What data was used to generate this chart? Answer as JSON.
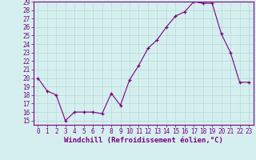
{
  "x": [
    0,
    1,
    2,
    3,
    4,
    5,
    6,
    7,
    8,
    9,
    10,
    11,
    12,
    13,
    14,
    15,
    16,
    17,
    18,
    19,
    20,
    21,
    22,
    23
  ],
  "y": [
    20,
    18.5,
    18,
    15,
    16,
    16,
    16,
    15.8,
    18.2,
    16.8,
    19.8,
    21.5,
    23.5,
    24.5,
    26,
    27.3,
    27.8,
    29,
    28.8,
    28.8,
    25.2,
    23,
    19.5,
    19.5
  ],
  "line_color": "#7b0080",
  "marker": "+",
  "background_color": "#d5efef",
  "grid_color": "#b8dada",
  "xlabel": "Windchill (Refroidissement éolien,°C)",
  "xlim": [
    -0.5,
    23.5
  ],
  "ylim": [
    14.5,
    29.0
  ],
  "yticks": [
    15,
    16,
    17,
    18,
    19,
    20,
    21,
    22,
    23,
    24,
    25,
    26,
    27,
    28,
    29
  ],
  "xticks": [
    0,
    1,
    2,
    3,
    4,
    5,
    6,
    7,
    8,
    9,
    10,
    11,
    12,
    13,
    14,
    15,
    16,
    17,
    18,
    19,
    20,
    21,
    22,
    23
  ],
  "tick_label_size": 5.5,
  "xlabel_size": 6.5,
  "spine_color": "#7b0080"
}
